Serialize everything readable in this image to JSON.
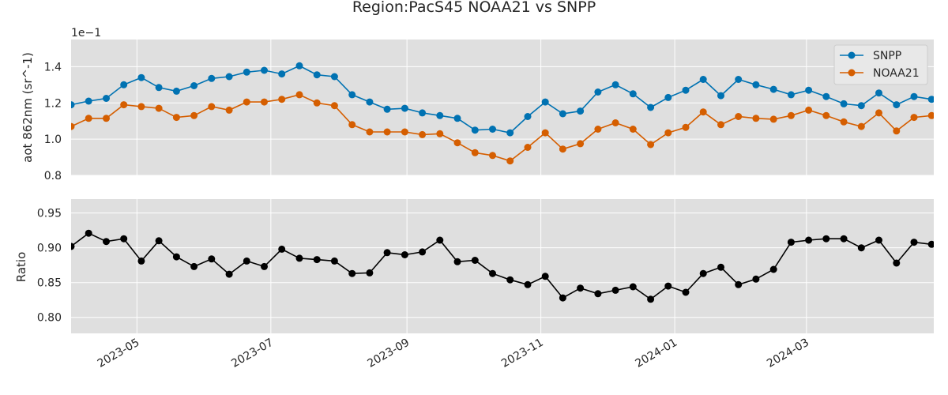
{
  "chart_data": [
    {
      "type": "line",
      "title": "Region:PacS45 NOAA21 vs SNPP",
      "ylabel": "aot 862nm (sr^-1)",
      "y_offset_label": "1e−1",
      "ylim": [
        0.8,
        1.55
      ],
      "yticks": [
        0.8,
        1.0,
        1.2,
        1.4
      ],
      "xlim": [
        "2023-04-01",
        "2024-04-28"
      ],
      "legend_position": "top-right",
      "grid": true,
      "x": [
        "2023-04-01",
        "2023-04-09",
        "2023-04-17",
        "2023-04-25",
        "2023-05-03",
        "2023-05-11",
        "2023-05-19",
        "2023-05-27",
        "2023-06-04",
        "2023-06-12",
        "2023-06-20",
        "2023-06-28",
        "2023-07-06",
        "2023-07-14",
        "2023-07-22",
        "2023-07-30",
        "2023-08-07",
        "2023-08-15",
        "2023-08-23",
        "2023-08-31",
        "2023-09-08",
        "2023-09-16",
        "2023-09-24",
        "2023-10-02",
        "2023-10-10",
        "2023-10-18",
        "2023-10-26",
        "2023-11-03",
        "2023-11-11",
        "2023-11-19",
        "2023-11-27",
        "2023-12-05",
        "2023-12-13",
        "2023-12-21",
        "2023-12-29",
        "2024-01-06",
        "2024-01-14",
        "2024-01-22",
        "2024-01-30",
        "2024-02-07",
        "2024-02-15",
        "2024-02-23",
        "2024-03-02",
        "2024-03-10",
        "2024-03-18",
        "2024-03-26",
        "2024-04-03",
        "2024-04-11",
        "2024-04-19",
        "2024-04-27"
      ],
      "series": [
        {
          "name": "SNPP",
          "color": "#0072b2",
          "values": [
            1.19,
            1.21,
            1.225,
            1.3,
            1.34,
            1.285,
            1.265,
            1.295,
            1.335,
            1.345,
            1.37,
            1.38,
            1.36,
            1.405,
            1.355,
            1.345,
            1.245,
            1.205,
            1.165,
            1.17,
            1.145,
            1.13,
            1.115,
            1.05,
            1.055,
            1.035,
            1.125,
            1.205,
            1.14,
            1.155,
            1.26,
            1.3,
            1.25,
            1.175,
            1.23,
            1.27,
            1.33,
            1.24,
            1.33,
            1.3,
            1.275,
            1.245,
            1.27,
            1.235,
            1.195,
            1.185,
            1.255,
            1.19,
            1.235,
            1.22
          ]
        },
        {
          "name": "NOAA21",
          "color": "#d55e00",
          "values": [
            1.07,
            1.115,
            1.115,
            1.19,
            1.18,
            1.17,
            1.12,
            1.13,
            1.18,
            1.16,
            1.205,
            1.205,
            1.22,
            1.245,
            1.2,
            1.185,
            1.08,
            1.04,
            1.04,
            1.04,
            1.025,
            1.03,
            0.98,
            0.925,
            0.91,
            0.88,
            0.955,
            1.035,
            0.945,
            0.975,
            1.055,
            1.09,
            1.055,
            0.97,
            1.035,
            1.065,
            1.15,
            1.08,
            1.125,
            1.115,
            1.11,
            1.13,
            1.16,
            1.13,
            1.095,
            1.07,
            1.145,
            1.045,
            1.12,
            1.13
          ]
        }
      ]
    },
    {
      "type": "line",
      "ylabel": "Ratio",
      "ylim": [
        0.777,
        0.97
      ],
      "yticks": [
        0.8,
        0.85,
        0.9,
        0.95
      ],
      "ytick_labels": [
        "0.80",
        "0.85",
        "0.90",
        "0.95"
      ],
      "xlim": [
        "2023-04-01",
        "2024-04-28"
      ],
      "grid": true,
      "xticks": [
        "2023-05-01",
        "2023-07-01",
        "2023-09-01",
        "2023-11-01",
        "2024-01-01",
        "2024-03-01"
      ],
      "xtick_labels": [
        "2023-05",
        "2023-07",
        "2023-09",
        "2023-11",
        "2024-01",
        "2024-03"
      ],
      "x": [
        "2023-04-01",
        "2023-04-09",
        "2023-04-17",
        "2023-04-25",
        "2023-05-03",
        "2023-05-11",
        "2023-05-19",
        "2023-05-27",
        "2023-06-04",
        "2023-06-12",
        "2023-06-20",
        "2023-06-28",
        "2023-07-06",
        "2023-07-14",
        "2023-07-22",
        "2023-07-30",
        "2023-08-07",
        "2023-08-15",
        "2023-08-23",
        "2023-08-31",
        "2023-09-08",
        "2023-09-16",
        "2023-09-24",
        "2023-10-02",
        "2023-10-10",
        "2023-10-18",
        "2023-10-26",
        "2023-11-03",
        "2023-11-11",
        "2023-11-19",
        "2023-11-27",
        "2023-12-05",
        "2023-12-13",
        "2023-12-21",
        "2023-12-29",
        "2024-01-06",
        "2024-01-14",
        "2024-01-22",
        "2024-01-30",
        "2024-02-07",
        "2024-02-15",
        "2024-02-23",
        "2024-03-02",
        "2024-03-10",
        "2024-03-18",
        "2024-03-26",
        "2024-04-03",
        "2024-04-11",
        "2024-04-19",
        "2024-04-27"
      ],
      "series": [
        {
          "color": "#000000",
          "values": [
            0.902,
            0.921,
            0.909,
            0.913,
            0.881,
            0.91,
            0.887,
            0.873,
            0.884,
            0.862,
            0.881,
            0.873,
            0.898,
            0.885,
            0.883,
            0.881,
            0.863,
            0.864,
            0.893,
            0.89,
            0.894,
            0.911,
            0.88,
            0.882,
            0.863,
            0.854,
            0.847,
            0.859,
            0.828,
            0.842,
            0.834,
            0.839,
            0.844,
            0.826,
            0.845,
            0.836,
            0.863,
            0.872,
            0.847,
            0.855,
            0.869,
            0.908,
            0.911,
            0.913,
            0.913,
            0.9,
            0.911,
            0.878,
            0.908,
            0.905
          ]
        }
      ]
    }
  ]
}
